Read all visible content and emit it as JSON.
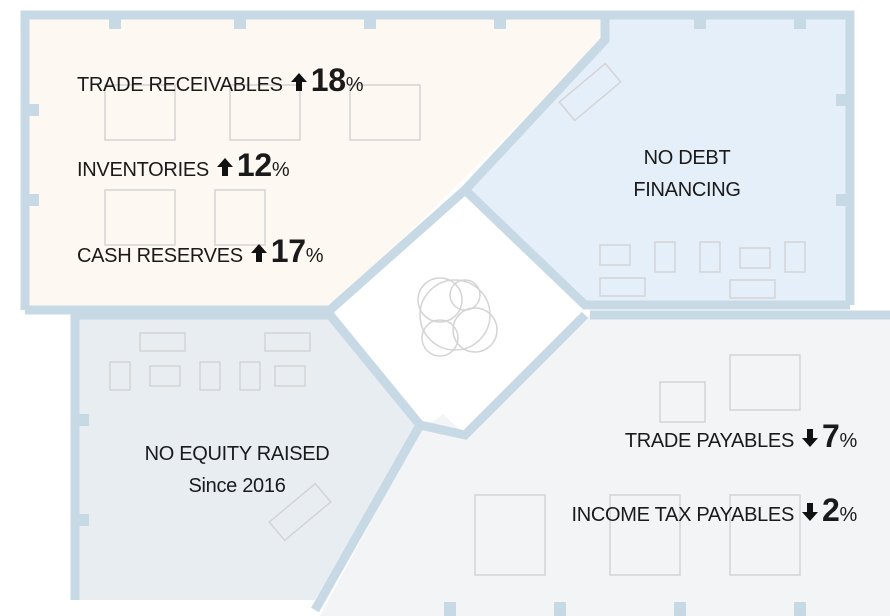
{
  "stats_left": [
    {
      "label": "TRADE RECEIVABLES",
      "value": 18,
      "unit": "%"
    },
    {
      "label": "INVENTORIES",
      "value": 12,
      "unit": "%"
    },
    {
      "label": "CASH RESERVES",
      "value": 17,
      "unit": "%"
    }
  ],
  "stats_right": [
    {
      "label": "TRADE PAYABLES",
      "value": 7,
      "unit": "%"
    },
    {
      "label": "INCOME TAX PAYABLES",
      "value": 2,
      "unit": "%"
    }
  ],
  "note_top_right": {
    "lines": [
      "NO DEBT",
      "FINANCING"
    ]
  },
  "note_bottom_left": {
    "lines": [
      "NO EQUITY RAISED",
      "Since 2016"
    ]
  }
}
